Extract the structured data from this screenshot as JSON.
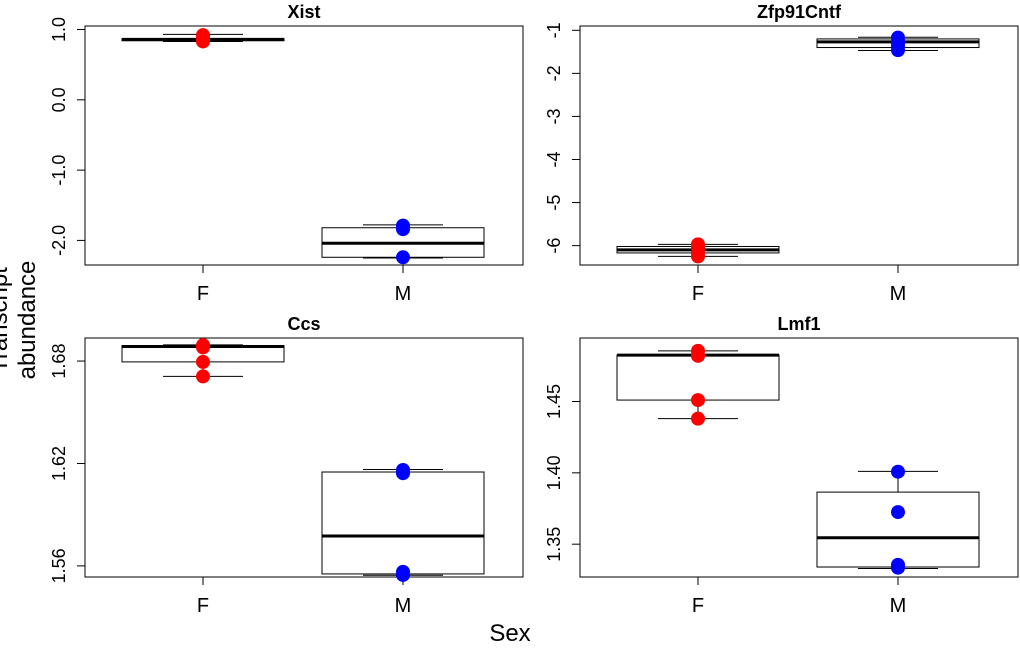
{
  "figure": {
    "ylabel": "Transcript abundance",
    "xlabel": "Sex"
  },
  "chart_data": [
    {
      "type": "box",
      "title": "Xist",
      "categories": [
        "F",
        "M"
      ],
      "ylim": [
        -2.35,
        1.05
      ],
      "yticks": [
        1.0,
        0.0,
        -1.0,
        -2.0
      ],
      "ytick_labels": [
        "1.0",
        "0.0",
        "-1.0",
        "-2.0"
      ],
      "boxes": [
        {
          "category": "F",
          "whisker_low": 0.83,
          "q1": 0.84,
          "median": 0.86,
          "q3": 0.87,
          "whisker_high": 0.93
        },
        {
          "category": "M",
          "whisker_low": -2.25,
          "q1": -2.24,
          "median": -2.04,
          "q3": -1.82,
          "whisker_high": -1.78
        }
      ],
      "points": [
        {
          "category": "F",
          "color": "#ff0000",
          "values": [
            0.92,
            0.89,
            0.86,
            0.83
          ]
        },
        {
          "category": "M",
          "color": "#0000ff",
          "values": [
            -1.79,
            -1.84,
            -2.24
          ]
        }
      ]
    },
    {
      "type": "box",
      "title": "Zfp91Cntf",
      "categories": [
        "F",
        "M"
      ],
      "ylim": [
        -6.45,
        -0.9
      ],
      "yticks": [
        -1,
        -2,
        -3,
        -4,
        -5,
        -6
      ],
      "ytick_labels": [
        "-1",
        "-2",
        "-3",
        "-4",
        "-5",
        "-6"
      ],
      "boxes": [
        {
          "category": "F",
          "whisker_low": -6.25,
          "q1": -6.17,
          "median": -6.1,
          "q3": -6.02,
          "whisker_high": -5.97
        },
        {
          "category": "M",
          "whisker_low": -1.47,
          "q1": -1.4,
          "median": -1.27,
          "q3": -1.2,
          "whisker_high": -1.16
        }
      ],
      "points": [
        {
          "category": "F",
          "color": "#ff0000",
          "values": [
            -5.97,
            -6.05,
            -6.17,
            -6.25
          ]
        },
        {
          "category": "M",
          "color": "#0000ff",
          "values": [
            -1.17,
            -1.27,
            -1.35,
            -1.46
          ]
        }
      ]
    },
    {
      "type": "box",
      "title": "Ccs",
      "categories": [
        "F",
        "M"
      ],
      "ylim": [
        1.5535,
        1.6935
      ],
      "yticks": [
        1.68,
        1.62,
        1.56
      ],
      "ytick_labels": [
        "1.68",
        "1.62",
        "1.56"
      ],
      "boxes": [
        {
          "category": "F",
          "whisker_low": 1.671,
          "q1": 1.6795,
          "median": 1.6885,
          "q3": 1.689,
          "whisker_high": 1.6895
        },
        {
          "category": "M",
          "whisker_low": 1.5545,
          "q1": 1.5553,
          "median": 1.5775,
          "q3": 1.615,
          "whisker_high": 1.6165
        }
      ],
      "points": [
        {
          "category": "F",
          "color": "#ff0000",
          "values": [
            1.6893,
            1.688,
            1.6795,
            1.671
          ]
        },
        {
          "category": "M",
          "color": "#0000ff",
          "values": [
            1.6162,
            1.6143,
            1.5565,
            1.5547
          ]
        }
      ]
    },
    {
      "type": "box",
      "title": "Lmf1",
      "categories": [
        "F",
        "M"
      ],
      "ylim": [
        1.327,
        1.4945
      ],
      "yticks": [
        1.45,
        1.4,
        1.35
      ],
      "ytick_labels": [
        "1.45",
        "1.40",
        "1.35"
      ],
      "boxes": [
        {
          "category": "F",
          "whisker_low": 1.438,
          "q1": 1.451,
          "median": 1.4825,
          "q3": 1.4825,
          "whisker_high": 1.4855
        },
        {
          "category": "M",
          "whisker_low": 1.333,
          "q1": 1.334,
          "median": 1.3545,
          "q3": 1.3865,
          "whisker_high": 1.401
        }
      ],
      "points": [
        {
          "category": "F",
          "color": "#ff0000",
          "values": [
            1.4855,
            1.482,
            1.451,
            1.438
          ]
        },
        {
          "category": "M",
          "color": "#0000ff",
          "values": [
            1.4008,
            1.3725,
            1.3355,
            1.3335
          ]
        }
      ]
    }
  ]
}
